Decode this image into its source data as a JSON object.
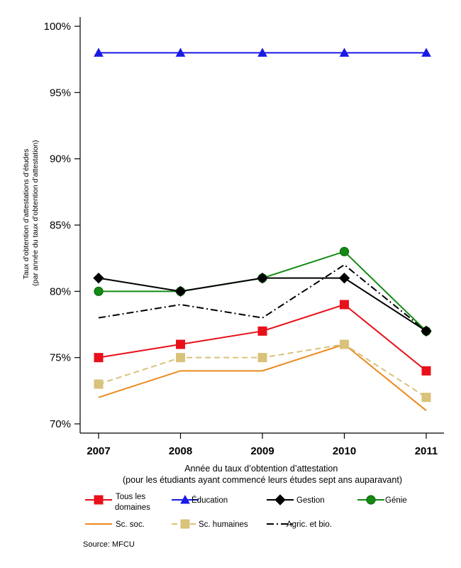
{
  "chart_data": {
    "type": "line",
    "x": [
      "2007",
      "2008",
      "2009",
      "2010",
      "2011"
    ],
    "xlabel_lines": [
      "Année du taux d’obtention d’attestation",
      "(pour les étudiants ayant commencé leurs études sept ans auparavant)"
    ],
    "ylabel_lines": [
      "Taux d’obtention d’attestations d’études",
      "(par année du taux d’obtention d’attestation)"
    ],
    "ylim": [
      70,
      100
    ],
    "yticks": [
      70,
      75,
      80,
      85,
      90,
      95,
      100
    ],
    "ytick_labels": [
      "70%",
      "75%",
      "80%",
      "85%",
      "90%",
      "95%",
      "100%"
    ],
    "grid": false,
    "legend_position": "bottom",
    "series": [
      {
        "name": "Tous les domaines",
        "name_lines": [
          "Tous les",
          "domaines"
        ],
        "values": [
          75,
          76,
          77,
          79,
          74
        ],
        "color": "#e8101a",
        "marker": "square",
        "dash": "solid",
        "marker_stroke": "#e8101a"
      },
      {
        "name": "Éducation",
        "name_lines": [
          "Éducation"
        ],
        "values": [
          98,
          98,
          98,
          98,
          98
        ],
        "color": "#1a1ae6",
        "marker": "triangle",
        "dash": "solid",
        "marker_stroke": "#1a1ae6"
      },
      {
        "name": "Gestion",
        "name_lines": [
          "Gestion"
        ],
        "values": [
          81,
          80,
          81,
          81,
          77
        ],
        "color": "#000000",
        "marker": "diamond",
        "dash": "solid",
        "marker_stroke": "#000000"
      },
      {
        "name": "Génie",
        "name_lines": [
          "Génie"
        ],
        "values": [
          80,
          80,
          81,
          83,
          77
        ],
        "color": "#138a13",
        "marker": "circle",
        "dash": "solid",
        "marker_stroke": "#0d6a0d"
      },
      {
        "name": "Sc. soc.",
        "name_lines": [
          "Sc. soc."
        ],
        "values": [
          72,
          74,
          74,
          76,
          71
        ],
        "color": "#ec8a1e",
        "marker": "none",
        "dash": "solid",
        "marker_stroke": "#ec8a1e"
      },
      {
        "name": "Sc. humaines",
        "name_lines": [
          "Sc. humaines"
        ],
        "values": [
          73,
          75,
          75,
          76,
          72
        ],
        "color": "#d9c27a",
        "marker": "square",
        "dash": "dashed",
        "marker_stroke": "#d9c27a"
      },
      {
        "name": "Agric. et bio.",
        "name_lines": [
          "Agric. et bio."
        ],
        "values": [
          78,
          79,
          78,
          82,
          77
        ],
        "color": "#000000",
        "marker": "none",
        "dash": "dashdot",
        "marker_stroke": "#000000"
      }
    ]
  },
  "source": {
    "label": "Source:",
    "value": "MFCU"
  }
}
